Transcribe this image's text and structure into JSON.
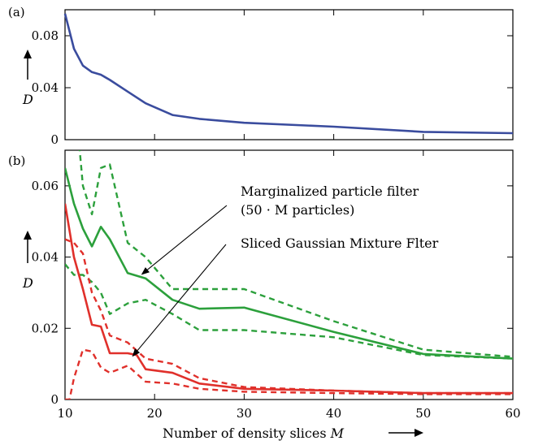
{
  "chart_data": [
    {
      "panel": "(a)",
      "type": "line",
      "ylabel": "D",
      "xlim": [
        10,
        60
      ],
      "ylim": [
        0,
        0.1
      ],
      "x_ticks": [],
      "y_ticks": [
        "0",
        "0.04",
        "0.08"
      ],
      "y_tick_values": [
        0,
        0.04,
        0.08
      ],
      "grid": false,
      "series": [
        {
          "color": "#3a4c9e",
          "style": "solid",
          "x": [
            10,
            11,
            12,
            13,
            14,
            15,
            17,
            19,
            22,
            25,
            30,
            40,
            50,
            60
          ],
          "y": [
            0.097,
            0.07,
            0.057,
            0.052,
            0.05,
            0.046,
            0.037,
            0.028,
            0.019,
            0.016,
            0.013,
            0.01,
            0.006,
            0.005
          ]
        }
      ]
    },
    {
      "panel": "(b)",
      "type": "line",
      "xlabel": "Number of density slices",
      "xlabel_var": "M",
      "ylabel": "D",
      "xlim": [
        10,
        60
      ],
      "ylim": [
        0,
        0.07
      ],
      "x_ticks": [
        "10",
        "20",
        "30",
        "40",
        "50",
        "60"
      ],
      "x_tick_values": [
        10,
        20,
        30,
        40,
        50,
        60
      ],
      "y_ticks": [
        "0",
        "0.02",
        "0.04",
        "0.06"
      ],
      "y_tick_values": [
        0,
        0.02,
        0.04,
        0.06
      ],
      "grid": false,
      "annotations": [
        {
          "text_lines": [
            "Marginalized particle filter",
            "(50 · M particles)"
          ],
          "points_to": [
            18.5,
            0.035
          ]
        },
        {
          "text_lines": [
            "Sliced Gaussian Mixture Flter"
          ],
          "points_to": [
            17.5,
            0.012
          ]
        }
      ],
      "series": [
        {
          "color": "#2ca03c",
          "style": "solid",
          "x": [
            10,
            11,
            12,
            13,
            14,
            15,
            17,
            19,
            22,
            25,
            30,
            40,
            50,
            60
          ],
          "y": [
            0.065,
            0.055,
            0.048,
            0.043,
            0.0485,
            0.045,
            0.0355,
            0.034,
            0.028,
            0.0255,
            0.0258,
            0.019,
            0.0128,
            0.0115
          ]
        },
        {
          "color": "#2ca03c",
          "style": "dashed",
          "x": [
            10,
            10.5,
            11,
            11.5,
            12,
            13,
            14,
            15,
            16,
            17,
            19,
            22,
            25,
            30,
            40,
            50,
            60
          ],
          "y": [
            0.072,
            0.074,
            0.073,
            0.074,
            0.06,
            0.052,
            0.065,
            0.066,
            0.055,
            0.044,
            0.04,
            0.031,
            0.031,
            0.031,
            0.022,
            0.014,
            0.012
          ]
        },
        {
          "color": "#2ca03c",
          "style": "dashed",
          "x": [
            10,
            11,
            12,
            13,
            14,
            15,
            17,
            19,
            22,
            25,
            30,
            40,
            50,
            60
          ],
          "y": [
            0.038,
            0.035,
            0.035,
            0.033,
            0.03,
            0.024,
            0.027,
            0.028,
            0.024,
            0.0195,
            0.0195,
            0.0175,
            0.0125,
            0.0115
          ]
        },
        {
          "color": "#e0302b",
          "style": "solid",
          "x": [
            10,
            11,
            12,
            13,
            14,
            15,
            17,
            18,
            19,
            22,
            25,
            30,
            40,
            50,
            60
          ],
          "y": [
            0.055,
            0.04,
            0.031,
            0.021,
            0.0205,
            0.013,
            0.013,
            0.0125,
            0.0085,
            0.0075,
            0.0045,
            0.003,
            0.0025,
            0.0018,
            0.0018
          ]
        },
        {
          "color": "#e0302b",
          "style": "dashed",
          "x": [
            10,
            11,
            12,
            13,
            14,
            15,
            17,
            19,
            22,
            25,
            30,
            40,
            50,
            60
          ],
          "y": [
            0.045,
            0.044,
            0.041,
            0.03,
            0.025,
            0.018,
            0.016,
            0.0115,
            0.01,
            0.006,
            0.0035,
            0.0025,
            0.0018,
            0.0018
          ]
        },
        {
          "color": "#e0302b",
          "style": "dashed",
          "x": [
            10,
            10.5,
            11,
            12,
            13,
            14,
            15,
            17,
            19,
            22,
            25,
            30,
            40,
            50,
            60
          ],
          "y": [
            0.0,
            0.0,
            0.006,
            0.014,
            0.0135,
            0.009,
            0.0075,
            0.0095,
            0.005,
            0.0045,
            0.003,
            0.0022,
            0.0018,
            0.0015,
            0.0015
          ]
        }
      ]
    }
  ]
}
